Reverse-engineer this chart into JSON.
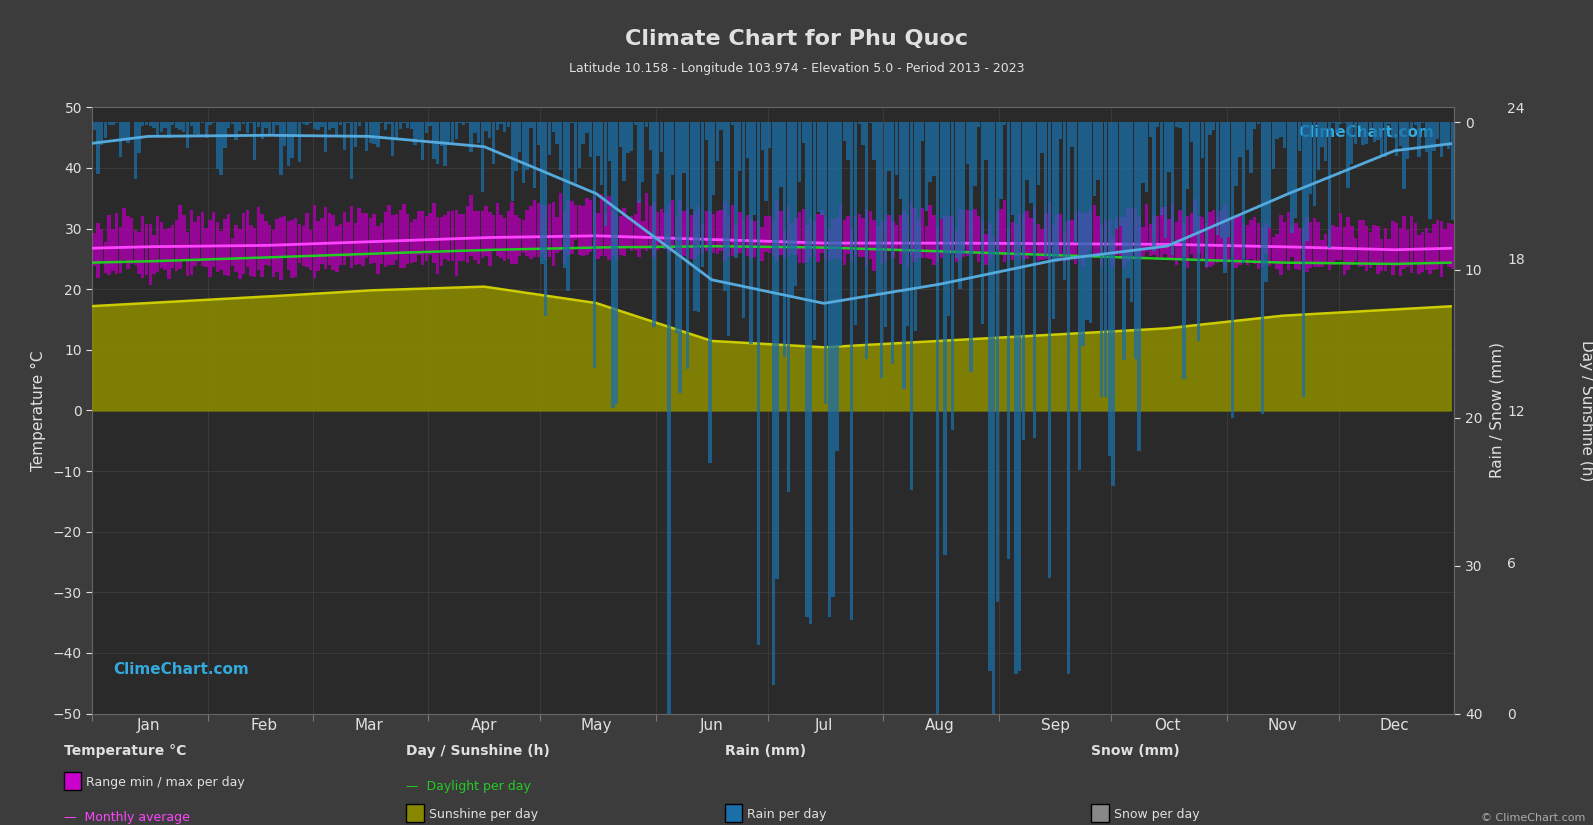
{
  "title": "Climate Chart for Phu Quoc",
  "subtitle": "Latitude 10.158 - Longitude 103.974 - Elevation 5.0 - Period 2013 - 2023",
  "bg_color": "#3c3c3c",
  "plot_bg_color": "#2a2a2a",
  "text_color": "#e0e0e0",
  "grid_color": "#505050",
  "ylabel_left": "Temperature °C",
  "ylabel_right_rain": "Rain / Snow (mm)",
  "ylabel_right_sun": "Day / Sunshine (h)",
  "xlim": [
    0,
    365
  ],
  "ylim_left": [
    -50,
    50
  ],
  "months": [
    "Jan",
    "Feb",
    "Mar",
    "Apr",
    "May",
    "Jun",
    "Jul",
    "Aug",
    "Sep",
    "Oct",
    "Nov",
    "Dec"
  ],
  "month_positions": [
    15,
    46,
    74,
    105,
    135,
    166,
    196,
    227,
    258,
    288,
    319,
    349
  ],
  "month_starts": [
    0,
    31,
    59,
    90,
    120,
    151,
    181,
    212,
    243,
    273,
    304,
    334,
    365
  ],
  "temp_max_monthly": [
    31,
    31,
    32,
    33,
    34,
    33,
    32,
    32,
    32,
    32,
    31,
    30
  ],
  "temp_min_monthly": [
    23,
    23,
    24,
    25,
    26,
    26,
    25,
    25,
    25,
    25,
    24,
    23
  ],
  "temp_avg_monthly": [
    27.0,
    27.2,
    27.8,
    28.5,
    28.8,
    28.2,
    27.6,
    27.6,
    27.5,
    27.4,
    27.0,
    26.5
  ],
  "daylight_monthly": [
    11.8,
    12.1,
    12.4,
    12.7,
    12.9,
    13.0,
    12.9,
    12.6,
    12.3,
    12.0,
    11.7,
    11.6
  ],
  "sunshine_monthly": [
    8.5,
    9.0,
    9.5,
    9.8,
    8.5,
    5.5,
    5.0,
    5.5,
    6.0,
    6.5,
    7.5,
    8.0
  ],
  "sunshine_avg_monthly": [
    8.5,
    9.0,
    9.5,
    9.8,
    8.5,
    5.5,
    5.0,
    5.5,
    6.0,
    6.5,
    7.5,
    8.0
  ],
  "rain_monthly_mm": [
    30,
    25,
    30,
    50,
    150,
    320,
    380,
    340,
    280,
    260,
    150,
    60
  ],
  "rain_monthly_avg_mm": [
    30,
    25,
    30,
    50,
    150,
    320,
    380,
    340,
    280,
    260,
    150,
    60
  ],
  "rain_scale": 8.0,
  "sun_scale_factor": 3.846,
  "colors": {
    "temp_range_bar": "#aa00aa",
    "temp_avg_line": "#ff44ff",
    "daylight_line": "#22cc22",
    "sunshine_fill": "#888800",
    "sunshine_line": "#cccc00",
    "rain_bar": "#1a6fa8",
    "rain_line": "#55aadd",
    "snow_fill": "#888888",
    "watermark_blue": "#33aadd"
  }
}
